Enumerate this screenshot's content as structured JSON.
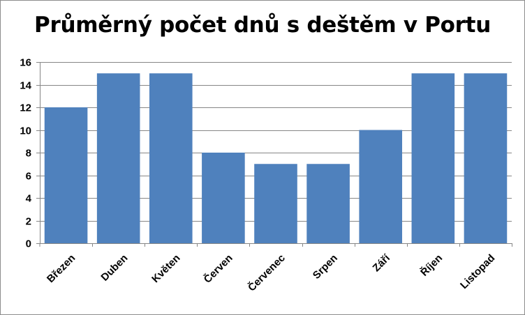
{
  "chart_data": {
    "type": "bar",
    "title": "Průměrný počet dnů s deštěm v Portu",
    "categories": [
      "Březen",
      "Duben",
      "Květen",
      "Červen",
      "Červenec",
      "Srpen",
      "Září",
      "Říjen",
      "Listopad"
    ],
    "values": [
      12,
      15,
      15,
      8,
      7,
      7,
      10,
      15,
      15
    ],
    "ylim": [
      0,
      16
    ],
    "yticks": [
      0,
      2,
      4,
      6,
      8,
      10,
      12,
      14,
      16
    ],
    "grid": true,
    "legend": "none",
    "bar_color": "#4f81bd",
    "grid_color": "#868686"
  }
}
